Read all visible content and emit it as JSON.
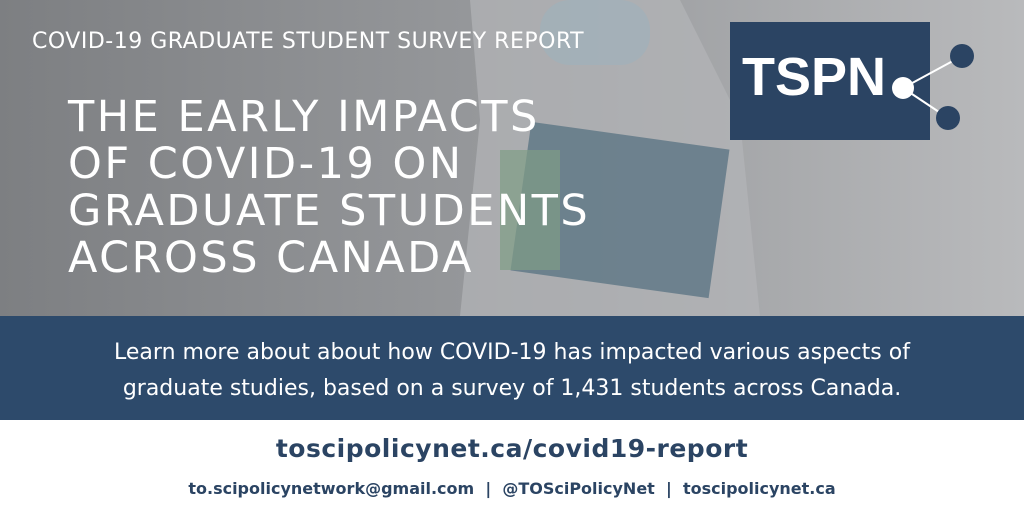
{
  "header": {
    "subtitle": "COVID-19 GRADUATE STUDENT SURVEY REPORT",
    "title_lines": [
      "THE EARLY IMPACTS",
      "OF COVID-19 ON",
      "GRADUATE STUDENTS",
      "ACROSS CANADA"
    ],
    "logo": "TSPN"
  },
  "description": {
    "lines": [
      "Learn more about about how COVID-19 has impacted various aspects of",
      "graduate studies, based on a survey of 1,431 students across Canada."
    ]
  },
  "footer": {
    "url": "toscipolicynet.ca/covid19-report",
    "contacts": "to.scipolicynetwork@gmail.com  |  @TOSciPolicyNet  |  toscipolicynet.ca"
  }
}
